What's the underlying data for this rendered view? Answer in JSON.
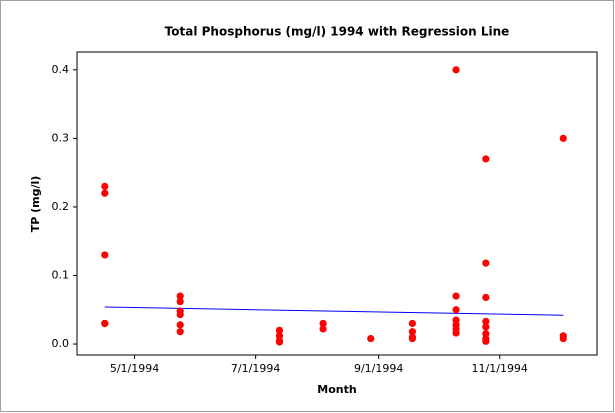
{
  "chart_data": {
    "type": "scatter",
    "title": "Total Phosphorus (mg/l) 1994 with Regression Line",
    "x_label": "Month",
    "y_label": "TP (mg/l)",
    "series": [
      {
        "name": "TP",
        "color": "#ff0000",
        "x": [
          "1994-04-16",
          "1994-04-16",
          "1994-04-16",
          "1994-04-16",
          "1994-04-16",
          "1994-05-24",
          "1994-05-24",
          "1994-05-24",
          "1994-05-24",
          "1994-05-24",
          "1994-05-24",
          "1994-07-13",
          "1994-07-13",
          "1994-07-13",
          "1994-07-13",
          "1994-08-04",
          "1994-08-04",
          "1994-08-28",
          "1994-09-18",
          "1994-09-18",
          "1994-09-18",
          "1994-09-18",
          "1994-10-10",
          "1994-10-10",
          "1994-10-10",
          "1994-10-10",
          "1994-10-10",
          "1994-10-10",
          "1994-10-10",
          "1994-10-25",
          "1994-10-25",
          "1994-10-25",
          "1994-10-25",
          "1994-10-25",
          "1994-10-25",
          "1994-10-25",
          "1994-10-25",
          "1994-12-03",
          "1994-12-03",
          "1994-12-03"
        ],
        "values": [
          0.23,
          0.22,
          0.13,
          0.03,
          0.03,
          0.07,
          0.062,
          0.048,
          0.043,
          0.028,
          0.018,
          0.02,
          0.012,
          0.005,
          0.003,
          0.03,
          0.022,
          0.008,
          0.03,
          0.018,
          0.01,
          0.008,
          0.4,
          0.07,
          0.05,
          0.035,
          0.028,
          0.022,
          0.016,
          0.27,
          0.118,
          0.068,
          0.033,
          0.025,
          0.015,
          0.008,
          0.004,
          0.3,
          0.012,
          0.008
        ]
      }
    ],
    "regression": {
      "color": "#0000ff",
      "x": [
        "1994-04-16",
        "1994-12-03"
      ],
      "values": [
        0.054,
        0.042
      ]
    },
    "xlim": [
      "1994-04-02",
      "1994-12-20"
    ],
    "xticks": [
      {
        "value": "1994-05-01",
        "label": "5/1/1994"
      },
      {
        "value": "1994-07-01",
        "label": "7/1/1994"
      },
      {
        "value": "1994-09-01",
        "label": "9/1/1994"
      },
      {
        "value": "1994-11-01",
        "label": "11/1/1994"
      }
    ],
    "ylim": [
      -0.016,
      0.426
    ],
    "yticks": [
      {
        "value": 0,
        "label": "0.0"
      },
      0.1,
      0.2,
      0.3,
      0.4
    ],
    "grid": false
  }
}
